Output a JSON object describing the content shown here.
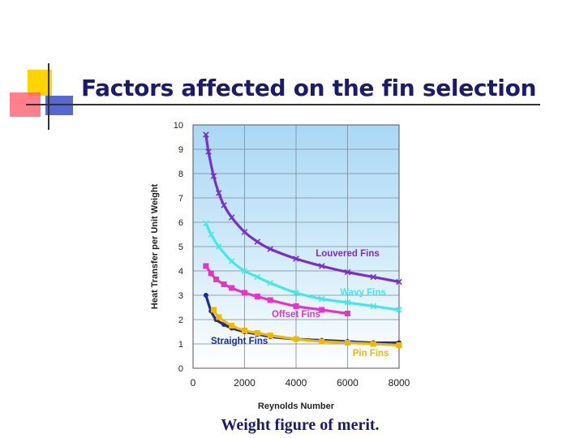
{
  "slide": {
    "title": "Factors affected on the fin selection",
    "caption": "Weight figure of merit."
  },
  "chart_data": {
    "type": "line",
    "title": "",
    "xlabel": "Reynolds Number",
    "ylabel": "Heat Transfer per Unit Weight",
    "xlim": [
      0,
      8000
    ],
    "ylim": [
      0,
      10
    ],
    "xticks": [
      0,
      2000,
      4000,
      6000,
      8000
    ],
    "yticks": [
      0,
      1,
      2,
      3,
      4,
      5,
      6,
      7,
      8,
      9,
      10
    ],
    "grid": true,
    "series": [
      {
        "name": "Louvered Fins",
        "color": "#7b2fc9",
        "marker": "x",
        "x": [
          500,
          600,
          800,
          1000,
          1200,
          1500,
          2000,
          2500,
          3000,
          4000,
          5000,
          6000,
          7000,
          8000
        ],
        "y": [
          9.6,
          8.9,
          7.9,
          7.2,
          6.7,
          6.2,
          5.6,
          5.2,
          4.9,
          4.5,
          4.2,
          3.95,
          3.75,
          3.55
        ]
      },
      {
        "name": "Wavy Fins",
        "color": "#44e8e8",
        "marker": "x",
        "x": [
          500,
          700,
          1000,
          1500,
          2000,
          2500,
          3000,
          4000,
          5000,
          6000,
          7000,
          8000
        ],
        "y": [
          5.95,
          5.5,
          5.0,
          4.4,
          4.0,
          3.75,
          3.5,
          3.1,
          2.85,
          2.7,
          2.55,
          2.4
        ]
      },
      {
        "name": "Offset Fins",
        "color": "#e633cc",
        "marker": "square",
        "x": [
          500,
          700,
          900,
          1200,
          1500,
          2000,
          2500,
          3000,
          4000,
          5000,
          6000
        ],
        "y": [
          4.2,
          3.9,
          3.65,
          3.45,
          3.3,
          3.1,
          2.95,
          2.8,
          2.55,
          2.4,
          2.25
        ]
      },
      {
        "name": "Straight Fins",
        "color": "#1a2ba0",
        "marker": "circle",
        "x": [
          500,
          700,
          900,
          1200,
          1500,
          2000,
          2500,
          3000,
          4000,
          5000,
          6000,
          7000,
          8000
        ],
        "y": [
          3.0,
          2.35,
          2.0,
          1.8,
          1.65,
          1.5,
          1.4,
          1.3,
          1.2,
          1.15,
          1.1,
          1.05,
          1.05
        ]
      },
      {
        "name": "Pin Fins",
        "color": "#f0b800",
        "marker": "square",
        "x": [
          800,
          1000,
          1500,
          2000,
          2500,
          3000,
          4000,
          5000,
          6000,
          7000,
          8000
        ],
        "y": [
          2.4,
          2.1,
          1.75,
          1.55,
          1.45,
          1.35,
          1.2,
          1.1,
          1.05,
          1.0,
          0.95
        ]
      }
    ]
  }
}
